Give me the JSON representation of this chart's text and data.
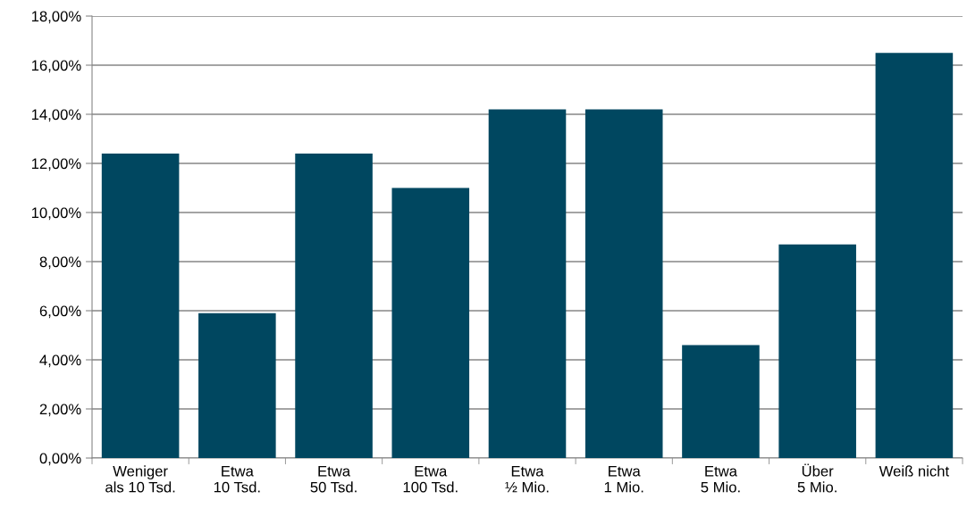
{
  "chart_data": {
    "type": "bar",
    "categories": [
      "Weniger\nals 10 Tsd.",
      "Etwa\n10 Tsd.",
      "Etwa\n50 Tsd.",
      "Etwa\n100 Tsd.",
      "Etwa\n½ Mio.",
      "Etwa\n1 Mio.",
      "Etwa\n5 Mio.",
      "Über\n5 Mio.",
      "Weiß nicht"
    ],
    "values": [
      12.4,
      5.9,
      12.4,
      11.0,
      14.2,
      14.2,
      4.6,
      8.7,
      16.5
    ],
    "color": "#004760",
    "ylim": [
      0,
      18
    ],
    "yticks": [
      {
        "value": 0,
        "label": "0,00%"
      },
      {
        "value": 2,
        "label": "2,00%"
      },
      {
        "value": 4,
        "label": "4,00%"
      },
      {
        "value": 6,
        "label": "6,00%"
      },
      {
        "value": 8,
        "label": "8,00%"
      },
      {
        "value": 10,
        "label": "10,00%"
      },
      {
        "value": 12,
        "label": "12,00%"
      },
      {
        "value": 14,
        "label": "14,00%"
      },
      {
        "value": 16,
        "label": "16,00%"
      },
      {
        "value": 18,
        "label": "18,00%"
      }
    ],
    "grid": "y"
  }
}
